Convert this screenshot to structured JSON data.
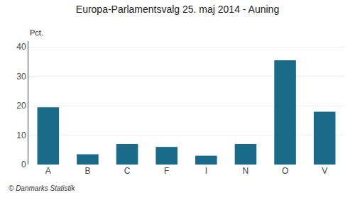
{
  "chart_data": {
    "type": "bar",
    "title": "Europa-Parlamentsvalg 25. maj 2014 - Auning",
    "categories": [
      "A",
      "B",
      "C",
      "F",
      "I",
      "N",
      "O",
      "V"
    ],
    "values": [
      19.5,
      3.5,
      7.0,
      6.0,
      3.0,
      7.0,
      35.5,
      18.0
    ],
    "color": "#1a6b8a",
    "ylabel": "Pct.",
    "annotations": [
      "© Danmarks Statistik"
    ],
    "ylim": [
      0,
      42
    ],
    "yticks": [
      0,
      10,
      20,
      30,
      40
    ],
    "grid": true
  }
}
